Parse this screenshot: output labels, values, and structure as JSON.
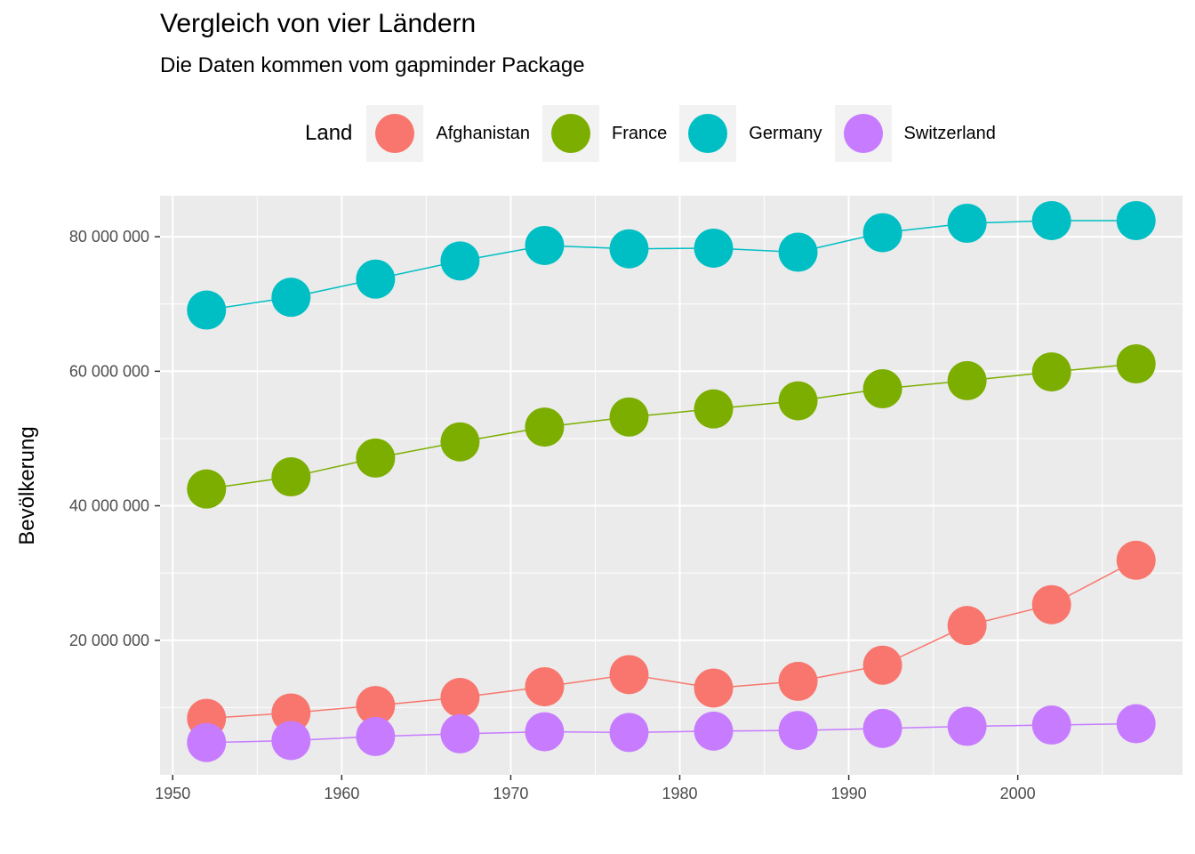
{
  "chart_data": {
    "type": "line",
    "title": "Vergleich von vier Ländern",
    "subtitle": "Die Daten kommen vom gapminder Package",
    "xlabel": "",
    "ylabel": "Bevölkerung",
    "legend_title": "Land",
    "legend_position": "top",
    "grid": true,
    "xlim": [
      1949.25,
      2009.75
    ],
    "ylim": [
      0,
      86100000
    ],
    "x_ticks": [
      1950,
      1960,
      1970,
      1980,
      1990,
      2000
    ],
    "x_tick_labels": [
      "1950",
      "1960",
      "1970",
      "1980",
      "1990",
      "2000"
    ],
    "y_ticks": [
      20000000,
      40000000,
      60000000,
      80000000
    ],
    "y_tick_labels": [
      "20 000 000",
      "40 000 000",
      "60 000 000",
      "80 000 000"
    ],
    "x": [
      1952,
      1957,
      1962,
      1967,
      1972,
      1977,
      1982,
      1987,
      1992,
      1997,
      2002,
      2007
    ],
    "series": [
      {
        "name": "Afghanistan",
        "color": "#F8766D",
        "values": [
          8400000,
          9200000,
          10300000,
          11500000,
          13100000,
          14900000,
          12900000,
          13900000,
          16300000,
          22200000,
          25300000,
          31900000
        ]
      },
      {
        "name": "France",
        "color": "#7CAE00",
        "values": [
          42500000,
          44300000,
          47100000,
          49500000,
          51700000,
          53200000,
          54400000,
          55600000,
          57400000,
          58600000,
          59900000,
          61100000
        ]
      },
      {
        "name": "Germany",
        "color": "#00BFC4",
        "values": [
          69100000,
          71000000,
          73700000,
          76400000,
          78700000,
          78200000,
          78300000,
          77700000,
          80600000,
          82000000,
          82400000,
          82400000
        ]
      },
      {
        "name": "Switzerland",
        "color": "#C77CFF",
        "values": [
          4800000,
          5100000,
          5700000,
          6100000,
          6400000,
          6300000,
          6500000,
          6600000,
          6900000,
          7200000,
          7400000,
          7600000
        ]
      }
    ]
  }
}
